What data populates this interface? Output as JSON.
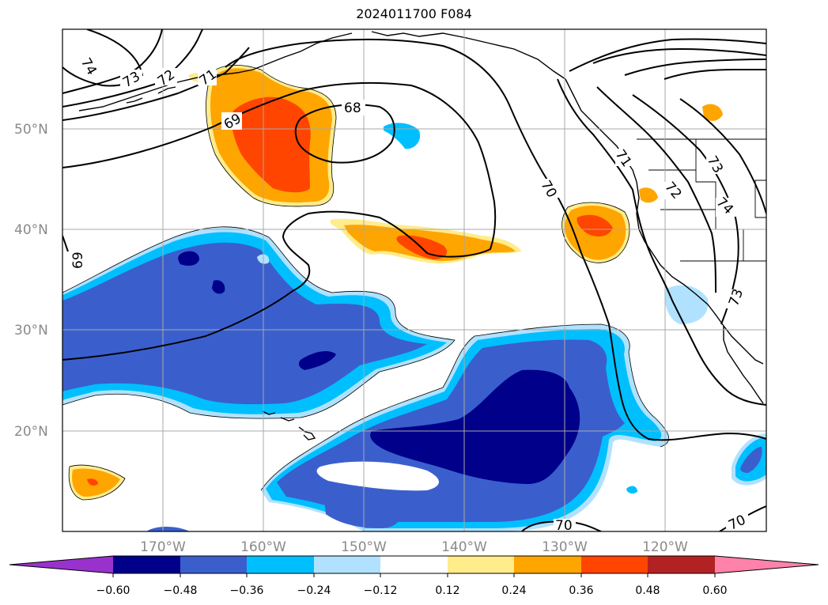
{
  "map": {
    "title": "2024011700 F084",
    "lat_labels": [
      "50°N",
      "40°N",
      "30°N",
      "20°N"
    ],
    "lon_labels": [
      "170°W",
      "160°W",
      "150°W",
      "140°W",
      "130°W",
      "120°W"
    ],
    "contour_labels": [
      "74",
      "73",
      "72",
      "71",
      "69",
      "68",
      "70",
      "69",
      "71",
      "72",
      "73",
      "74",
      "73",
      "70",
      "70"
    ],
    "colorbar": {
      "ticks": [
        "−0.60",
        "−0.48",
        "−0.36",
        "−0.24",
        "−0.12",
        "0.12",
        "0.24",
        "0.36",
        "0.48",
        "0.60"
      ],
      "colors": [
        "#9932cc",
        "#00008b",
        "#3a5fcd",
        "#00bfff",
        "#b0e2ff",
        "#ffffff",
        "#ffec8b",
        "#ffa500",
        "#ff4500",
        "#b22222",
        "#ff82ab"
      ]
    },
    "fill_colors": {
      "dark_blue": "#00008b",
      "royal_blue": "#3a5fcd",
      "sky_blue": "#00bfff",
      "light_blue": "#b0e2ff",
      "yellow": "#ffec8b",
      "orange": "#ffa500",
      "red_orange": "#ff4500"
    }
  }
}
